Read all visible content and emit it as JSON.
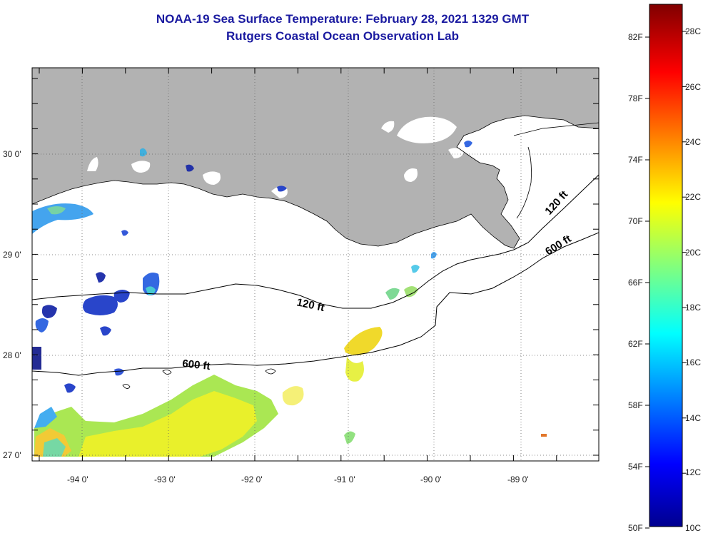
{
  "title": {
    "line1": "NOAA-19 Sea Surface Temperature:  February 28, 2021 1329 GMT",
    "line2": "Rutgers Coastal Ocean Observation Lab"
  },
  "colors": {
    "title": "#1a1aa0",
    "land": "#b2b2b2",
    "ocean": "#ffffff",
    "frame": "#000000"
  },
  "map": {
    "lat_labels": [
      "30 0'",
      "29 0'",
      "28 0'",
      "27 0'"
    ],
    "lon_labels": [
      "-94 0'",
      "-93 0'",
      "-92 0'",
      "-91 0'",
      "-90 0'",
      "-89 0'"
    ],
    "isobaths": [
      {
        "label": "120 ft",
        "icon": "isobath-contour"
      },
      {
        "label": "600 ft",
        "icon": "isobath-contour"
      }
    ]
  },
  "colorbar": {
    "fahrenheit_labels": [
      "82F",
      "78F",
      "74F",
      "70F",
      "66F",
      "62F",
      "58F",
      "54F",
      "50F"
    ],
    "celsius_labels": [
      "28C",
      "26C",
      "24C",
      "22C",
      "20C",
      "18C",
      "16C",
      "14C",
      "12C",
      "10C"
    ]
  }
}
